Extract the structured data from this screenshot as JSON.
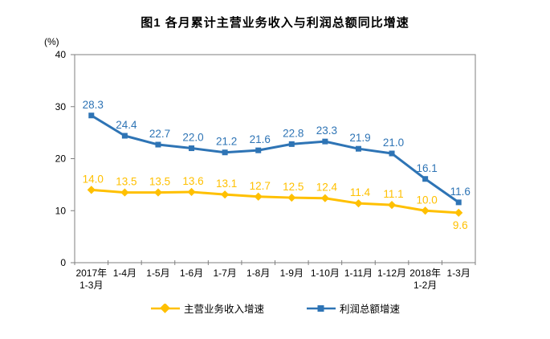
{
  "chart_data": {
    "type": "line",
    "title": "图1  各月累计主营业务收入与利润总额同比增速",
    "unit": "(%)",
    "categories": [
      "2017年\n1-3月",
      "1-4月",
      "1-5月",
      "1-6月",
      "1-7月",
      "1-8月",
      "1-9月",
      "1-10月",
      "1-11月",
      "1-12月",
      "2018年\n1-2月",
      "1-3月"
    ],
    "series": [
      {
        "name": "主营业务收入增速",
        "color": "#FFC000",
        "marker": "diamond",
        "values": [
          14.0,
          13.5,
          13.5,
          13.6,
          13.1,
          12.7,
          12.5,
          12.4,
          11.4,
          11.1,
          10.0,
          9.6
        ],
        "labels_below": [
          11
        ]
      },
      {
        "name": "利润总额增速",
        "color": "#2E74B5",
        "marker": "square",
        "values": [
          28.3,
          24.4,
          22.7,
          22.0,
          21.2,
          21.6,
          22.8,
          23.3,
          21.9,
          21.0,
          16.1,
          11.6
        ],
        "labels_below": []
      }
    ],
    "ylim": [
      0,
      40
    ],
    "yticks": [
      0,
      10,
      20,
      30,
      40
    ],
    "grid": false,
    "legend_position": "bottom",
    "axis_color": "#7f7f7f",
    "text_color": "#000000"
  }
}
